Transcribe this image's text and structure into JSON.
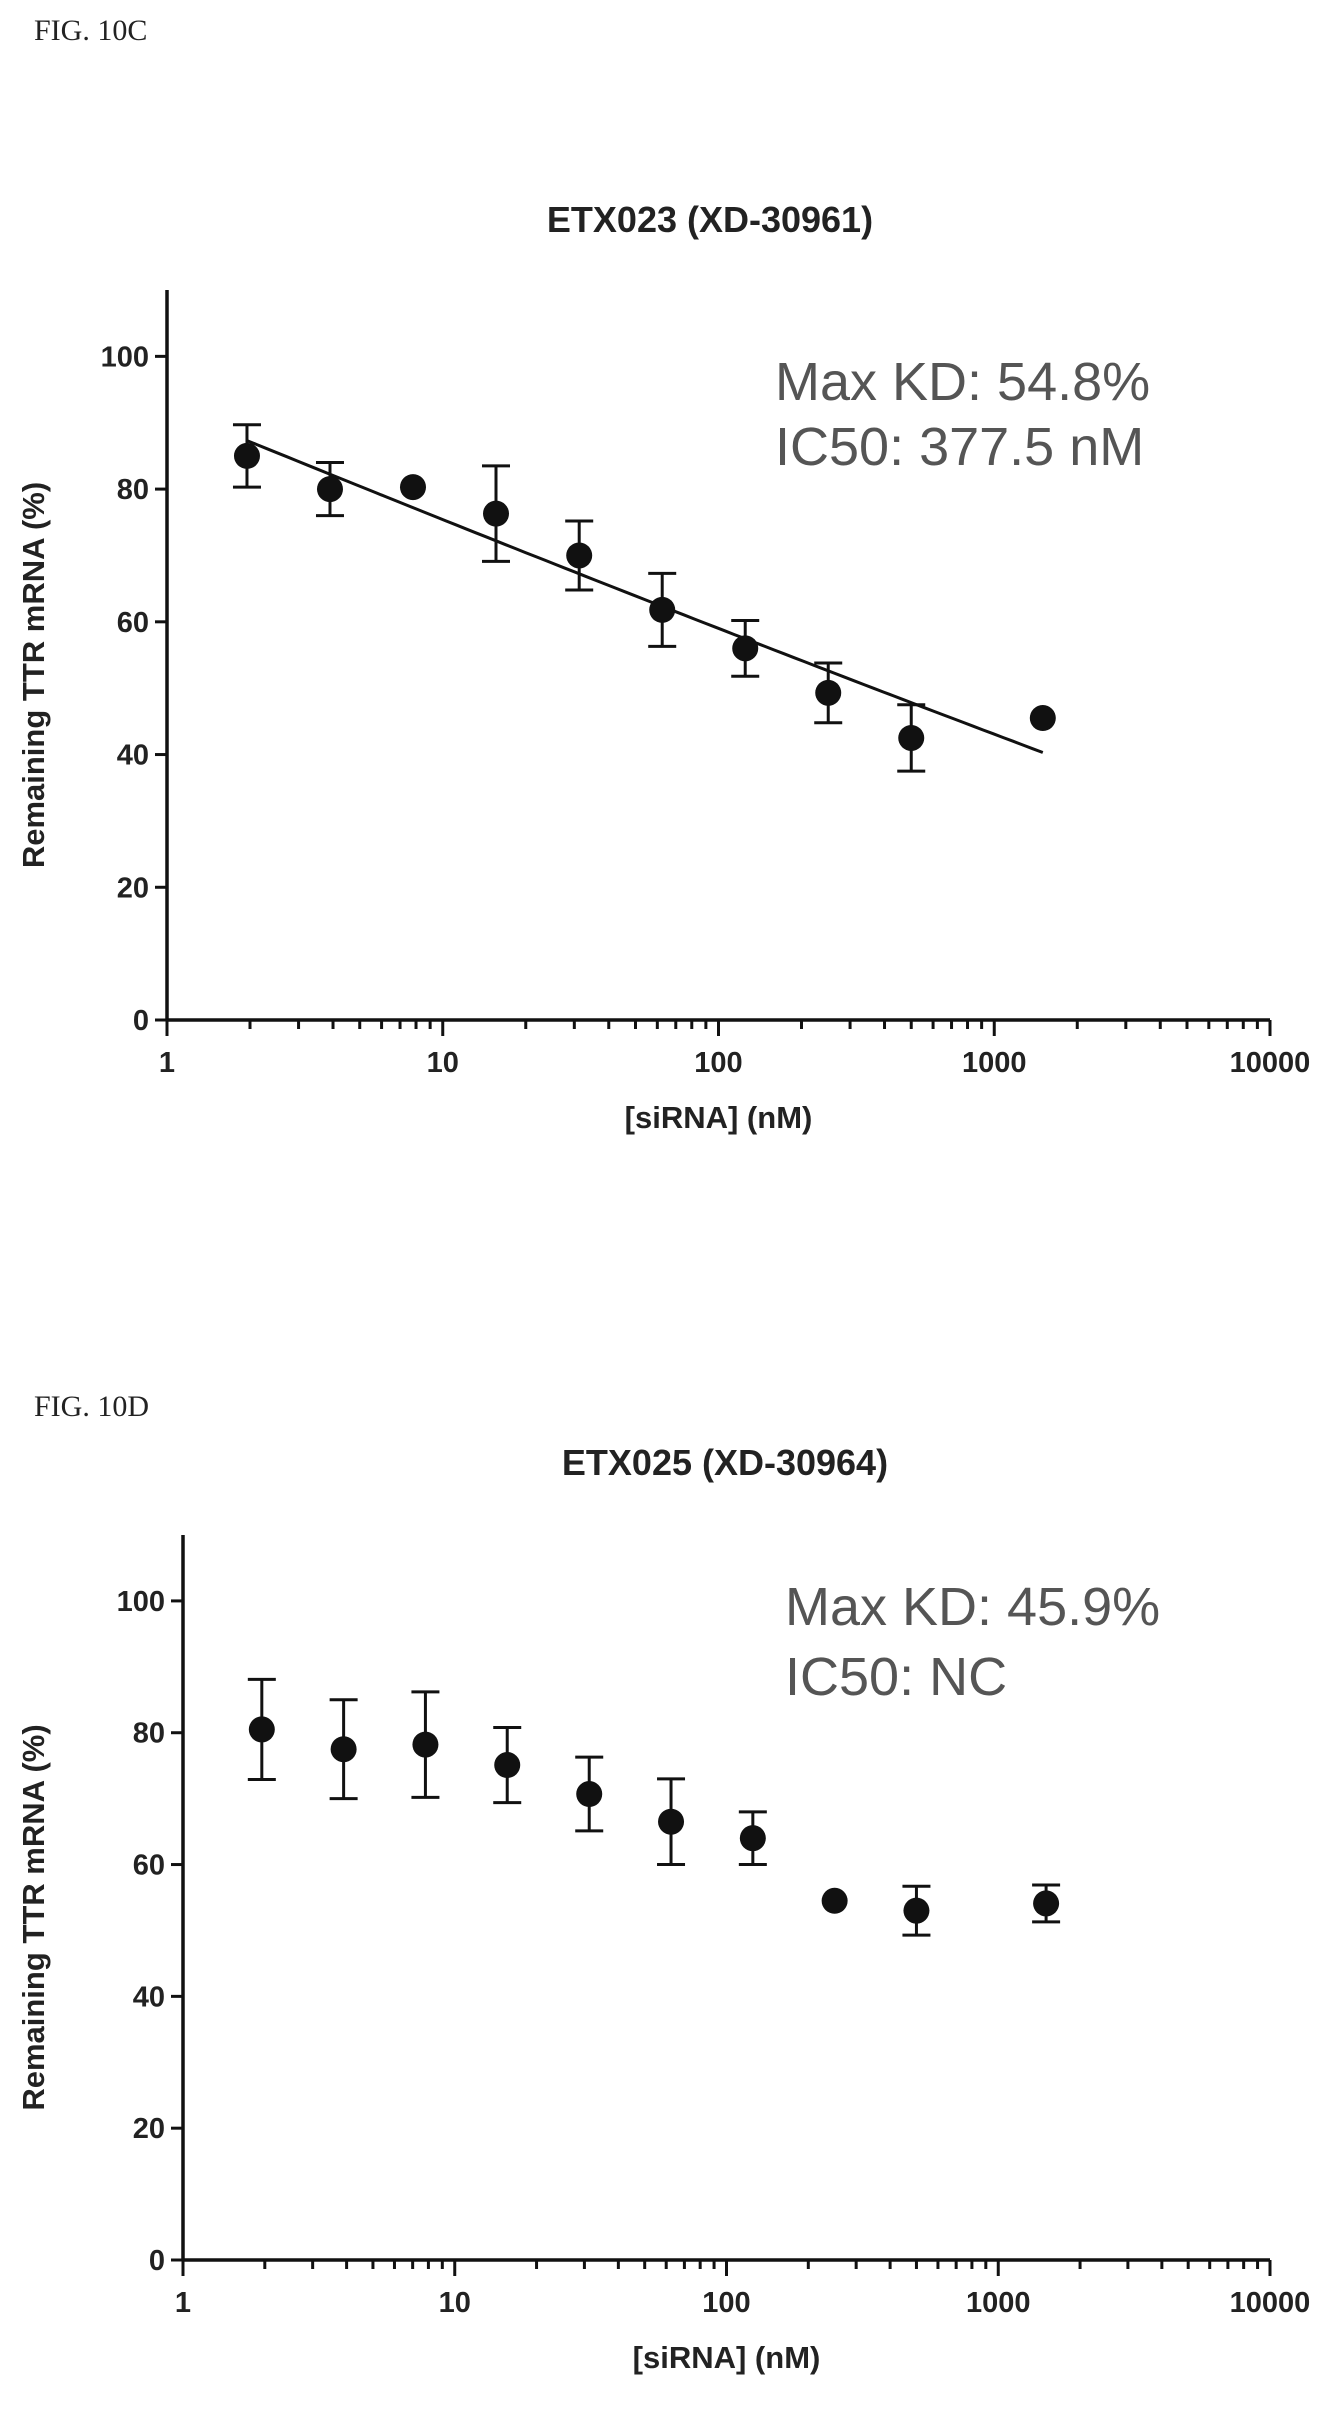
{
  "figures": [
    {
      "label": "FIG. 10C"
    },
    {
      "label": "FIG. 10D"
    }
  ],
  "chart_data": [
    {
      "type": "scatter",
      "title": "ETX023 (XD-30961)",
      "xlabel": "[siRNA] (nM)",
      "ylabel": "Remaining TTR mRNA (%)",
      "xscale": "log",
      "xlim": [
        1,
        10000
      ],
      "ylim": [
        0,
        110
      ],
      "xticks": [
        1,
        10,
        100,
        1000,
        10000
      ],
      "xtick_labels": [
        "1",
        "10",
        "100",
        "1000",
        "10000"
      ],
      "yticks": [
        0,
        20,
        40,
        60,
        80,
        100
      ],
      "ytick_labels": [
        "0",
        "20",
        "40",
        "60",
        "80",
        "100"
      ],
      "annotations": [
        "Max KD: 54.8%",
        "IC50: 377.5 nM"
      ],
      "fit_curve": true,
      "series": [
        {
          "x": [
            1.95,
            3.9,
            7.8,
            15.6,
            31.25,
            62.5,
            125,
            250,
            500,
            1500
          ],
          "y": [
            85,
            80,
            80.3,
            76.3,
            70,
            61.8,
            56,
            49.3,
            42.5,
            45.5
          ],
          "err": [
            4.7,
            4,
            0,
            7.2,
            5.2,
            5.5,
            4.2,
            4.5,
            5,
            0
          ]
        }
      ]
    },
    {
      "type": "scatter",
      "title": "ETX025 (XD-30964)",
      "xlabel": "[siRNA] (nM)",
      "ylabel": "Remaining TTR mRNA (%)",
      "xscale": "log",
      "xlim": [
        1,
        10000
      ],
      "ylim": [
        0,
        110
      ],
      "xticks": [
        1,
        10,
        100,
        1000,
        10000
      ],
      "xtick_labels": [
        "1",
        "10",
        "100",
        "1000",
        "10000"
      ],
      "yticks": [
        0,
        20,
        40,
        60,
        80,
        100
      ],
      "ytick_labels": [
        "0",
        "20",
        "40",
        "60",
        "80",
        "100"
      ],
      "annotations": [
        "Max KD: 45.9%",
        "IC50: NC"
      ],
      "fit_curve": false,
      "series": [
        {
          "x": [
            1.95,
            3.9,
            7.8,
            15.6,
            31.25,
            62.5,
            125,
            250,
            500,
            1500
          ],
          "y": [
            80.5,
            77.5,
            78.2,
            75.1,
            70.7,
            66.5,
            64,
            54.5,
            53,
            54.1
          ],
          "err": [
            7.6,
            7.5,
            8,
            5.7,
            5.6,
            6.5,
            4,
            0,
            3.7,
            2.8
          ]
        }
      ]
    }
  ]
}
